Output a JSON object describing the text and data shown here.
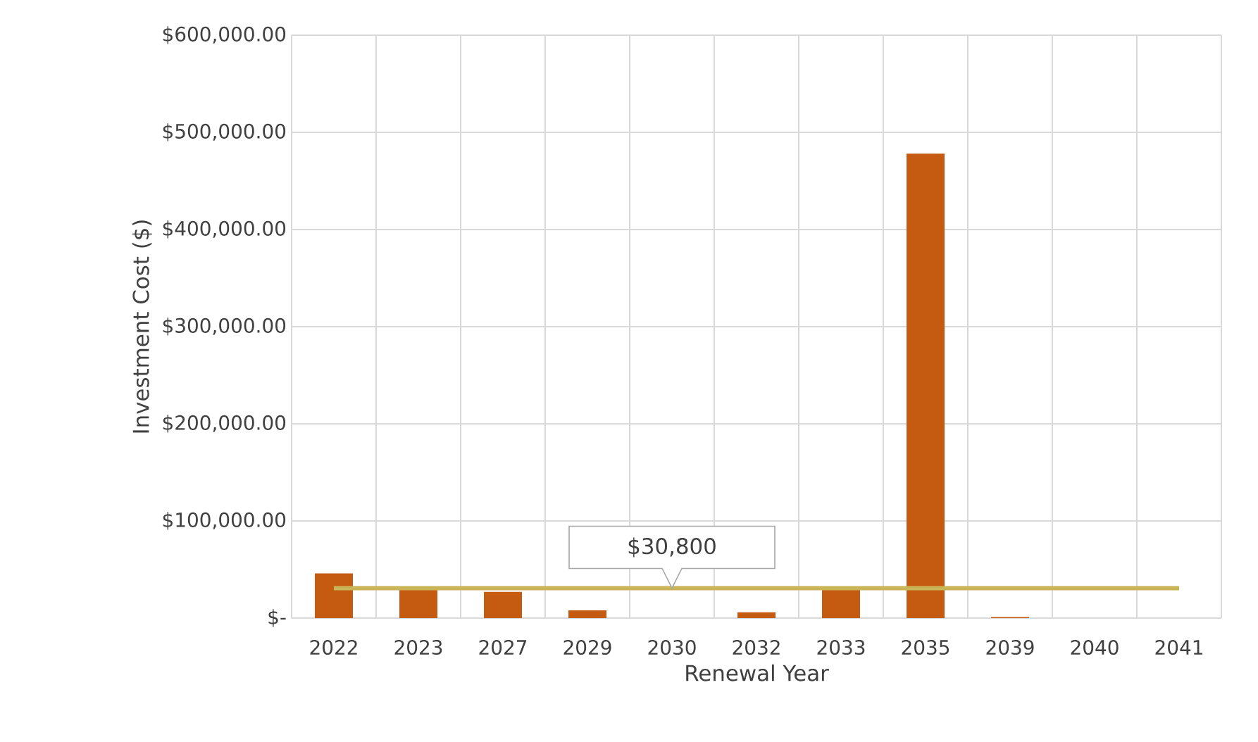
{
  "chart_data": {
    "type": "bar",
    "xlabel": "Renewal Year",
    "ylabel": "Investment Cost ($)",
    "categories": [
      "2022",
      "2023",
      "2027",
      "2029",
      "2030",
      "2032",
      "2033",
      "2035",
      "2039",
      "2040",
      "2041"
    ],
    "values": [
      46000,
      29000,
      27000,
      8000,
      0,
      6000,
      29000,
      478000,
      1000,
      0,
      0
    ],
    "color": "#c55a11",
    "ylim": [
      0,
      600000
    ],
    "yticks": [
      {
        "value": 0,
        "label": "$-"
      },
      {
        "value": 100000,
        "label": "$100,000.00"
      },
      {
        "value": 200000,
        "label": "$200,000.00"
      },
      {
        "value": 300000,
        "label": "$300,000.00"
      },
      {
        "value": 400000,
        "label": "$400,000.00"
      },
      {
        "value": 500000,
        "label": "$500,000.00"
      },
      {
        "value": 600000,
        "label": "$600,000.00"
      }
    ],
    "ref_lines": [
      {
        "axis": "y",
        "value": 30800,
        "color": "#c9b458"
      }
    ],
    "annotations": [
      {
        "text": "$30,800",
        "x": "2030",
        "y": 30800
      }
    ],
    "grid": true
  }
}
